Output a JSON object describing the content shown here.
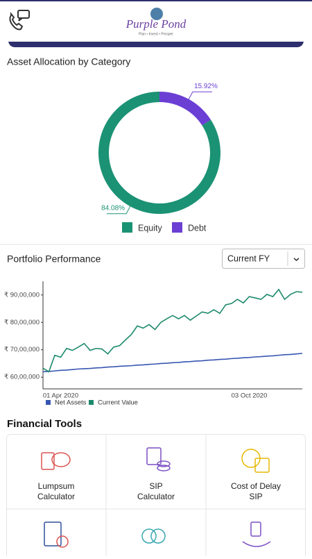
{
  "header": {
    "logo": "Purple Pond",
    "tagline": "Plan • Invest • Prosper"
  },
  "chart_data": [
    {
      "type": "pie",
      "title": "Asset Allocation by Category",
      "categories": [
        "Equity",
        "Debt"
      ],
      "values": [
        84.08,
        15.92
      ],
      "value_labels": [
        "84.08%",
        "15.92%"
      ],
      "colors": [
        "#1b9274",
        "#6b3fd4"
      ],
      "donut": true
    },
    {
      "type": "line",
      "title": "Portfolio Performance",
      "filter": "Current FY",
      "categories": [
        null,
        null,
        null,
        "01 Apr 2020",
        null,
        null,
        null,
        null,
        null,
        null,
        null,
        null,
        null,
        null,
        null,
        null,
        null,
        null,
        null,
        null,
        null,
        null,
        null,
        null,
        null,
        null,
        null,
        null,
        null,
        null,
        null,
        null,
        null,
        null,
        null,
        "03 Oct 2020",
        null,
        null,
        null,
        null,
        null,
        null,
        null,
        null,
        null
      ],
      "series": [
        {
          "name": "Net Assets",
          "color": "#3656b0",
          "values": [
            6200000,
            6210000,
            6230000,
            6250000,
            6260000,
            6280000,
            6300000,
            6310000,
            6320000,
            6340000,
            6350000,
            6370000,
            6380000,
            6400000,
            6410000,
            6420000,
            6440000,
            6450000,
            6470000,
            6480000,
            6500000,
            6510000,
            6530000,
            6540000,
            6560000,
            6570000,
            6590000,
            6600000,
            6620000,
            6630000,
            6650000,
            6660000,
            6680000,
            6690000,
            6710000,
            6720000,
            6740000,
            6750000,
            6770000,
            6780000,
            6800000,
            6820000,
            6830000,
            6850000,
            6870000
          ]
        },
        {
          "name": "Current Value",
          "color": "#1b8a6b",
          "values": [
            6330000,
            6200000,
            6800000,
            6730000,
            7050000,
            6980000,
            7100000,
            7230000,
            6980000,
            7050000,
            7030000,
            6850000,
            7100000,
            7150000,
            7360000,
            7560000,
            7870000,
            7790000,
            7920000,
            7740000,
            8000000,
            8130000,
            8250000,
            8130000,
            8250000,
            8080000,
            8230000,
            8380000,
            8330000,
            8460000,
            8330000,
            8640000,
            8690000,
            8840000,
            8710000,
            8940000,
            8890000,
            8840000,
            9020000,
            8940000,
            9200000,
            8840000,
            9020000,
            9120000,
            9100000
          ]
        }
      ],
      "ylim": [
        5575000,
        9500000
      ],
      "yticks": [
        {
          "value": 6000000,
          "label": "₹ 60,00,000"
        },
        {
          "value": 7000000,
          "label": "₹ 70,00,000"
        },
        {
          "value": 8000000,
          "label": "₹ 80,00,000"
        },
        {
          "value": 9000000,
          "label": "₹ 90,00,000"
        }
      ],
      "grid": false
    }
  ],
  "financial_tools": {
    "title": "Financial Tools",
    "items": [
      {
        "label": [
          "Lumpsum",
          "Calculator"
        ]
      },
      {
        "label": [
          "SIP",
          "Calculator"
        ]
      },
      {
        "label": [
          "Cost of Delay",
          "SIP"
        ]
      }
    ]
  }
}
